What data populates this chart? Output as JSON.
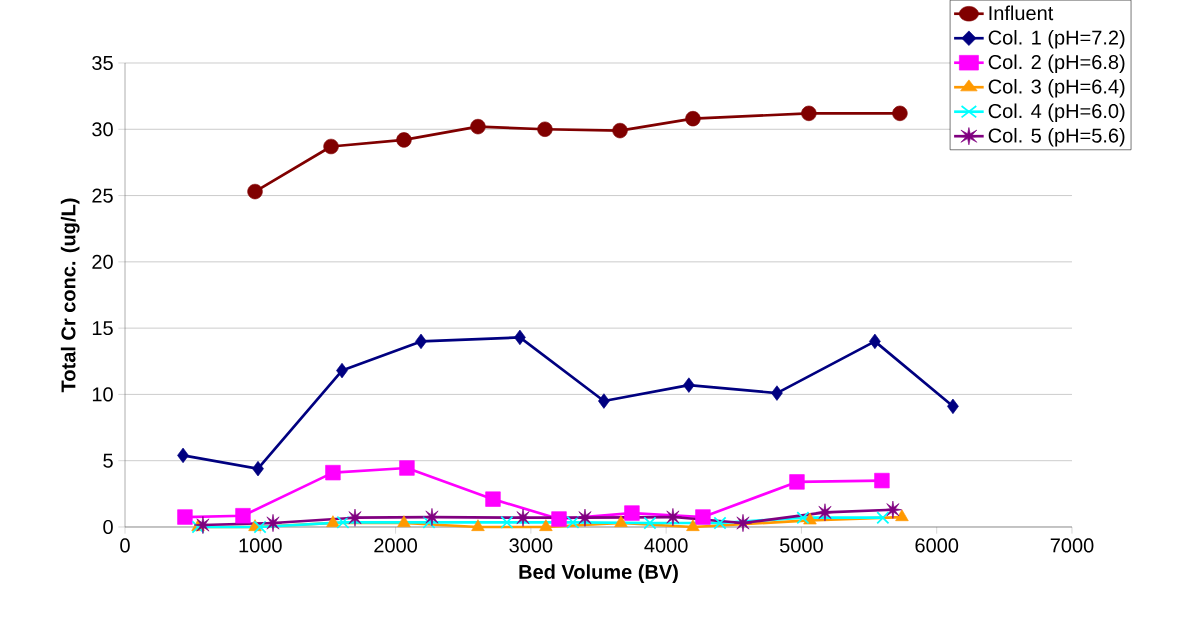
{
  "chart_data": {
    "type": "line",
    "xlabel": "Bed Volume (BV)",
    "ylabel": "Total Cr conc. (ug/L)",
    "xlim": [
      0,
      7000
    ],
    "xticks": [
      0,
      1000,
      2000,
      3000,
      4000,
      5000,
      6000,
      7000
    ],
    "ylim": [
      0,
      35
    ],
    "yticks": [
      0,
      5,
      10,
      15,
      20,
      25,
      30,
      35
    ],
    "grid": "y",
    "legend": "top right",
    "line_style": "solid",
    "series": [
      {
        "name": "Influent",
        "color": "#800000",
        "marker": "circle",
        "x": [
          961,
          1523,
          2062,
          2609,
          3104,
          3659,
          4198,
          5055,
          5728
        ],
        "values": [
          25.3,
          28.7,
          29.2,
          30.2,
          30.0,
          29.9,
          30.8,
          31.2,
          31.2
        ]
      },
      {
        "name": "Col. 1 (pH=7.2)",
        "color": "#000080",
        "marker": "diamond",
        "x": [
          429,
          983,
          1604,
          2188,
          2919,
          3540,
          4168,
          4819,
          5543,
          6120
        ],
        "values": [
          5.4,
          4.4,
          11.8,
          14.0,
          14.3,
          9.5,
          10.7,
          10.1,
          14.0,
          9.1
        ]
      },
      {
        "name": "Col. 2 (pH=6.8)",
        "color": "#ff00ff",
        "marker": "square",
        "x": [
          443,
          872,
          1537,
          2084,
          2720,
          3208,
          3747,
          4272,
          4967,
          5595
        ],
        "values": [
          0.75,
          0.85,
          4.1,
          4.45,
          2.1,
          0.6,
          1.05,
          0.75,
          3.4,
          3.5
        ]
      },
      {
        "name": "Col. 3 (pH=6.4)",
        "color": "#ff9900",
        "marker": "triangle",
        "x": [
          540,
          961,
          1537,
          2062,
          2609,
          3111,
          3666,
          4198,
          5063,
          5743
        ],
        "values": [
          0,
          0,
          0.3,
          0.3,
          0,
          0,
          0.3,
          0,
          0.5,
          0.75
        ]
      },
      {
        "name": "Col. 4 (pH=6.0)",
        "color": "#00ffff",
        "marker": "cross",
        "x": [
          540,
          998,
          1611,
          2247,
          2823,
          3311,
          3880,
          4398,
          5011,
          5602
        ],
        "values": [
          0,
          0,
          0.35,
          0.35,
          0.35,
          0.35,
          0.3,
          0.3,
          0.7,
          0.7
        ]
      },
      {
        "name": "Col. 5 (pH=5.6)",
        "color": "#800080",
        "marker": "star",
        "x": [
          576,
          1094,
          1700,
          2269,
          2942,
          3400,
          4050,
          4568,
          5174,
          5676
        ],
        "values": [
          0.15,
          0.3,
          0.7,
          0.75,
          0.7,
          0.7,
          0.75,
          0.3,
          1.1,
          1.3
        ]
      }
    ]
  }
}
